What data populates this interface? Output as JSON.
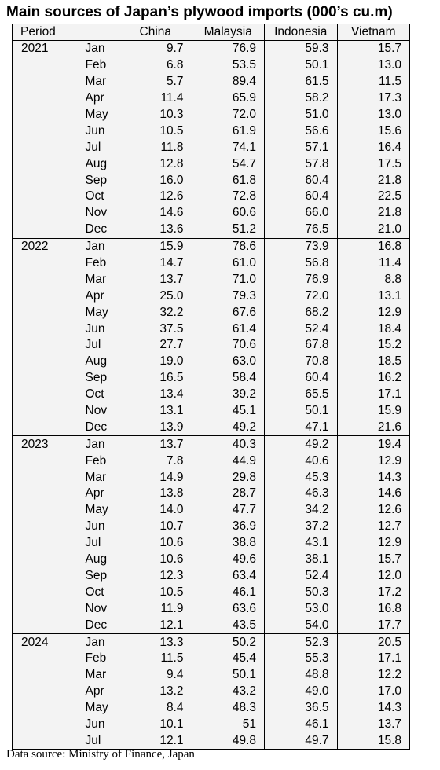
{
  "title": "Main sources of Japan’s plywood imports (000’s cu.m)",
  "source": "Data source: Ministry of Finance, Japan",
  "chart_data": {
    "type": "table",
    "title": "Main sources of Japan’s plywood imports (000’s cu.m)",
    "header": {
      "period": "Period",
      "series": [
        "China",
        "Malaysia",
        "Indonesia",
        "Vietnam"
      ]
    },
    "groups": [
      {
        "year": "2021",
        "rows": [
          {
            "month": "Jan",
            "values": [
              "9.7",
              "76.9",
              "59.3",
              "15.7"
            ]
          },
          {
            "month": "Feb",
            "values": [
              "6.8",
              "53.5",
              "50.1",
              "13.0"
            ]
          },
          {
            "month": "Mar",
            "values": [
              "5.7",
              "89.4",
              "61.5",
              "11.5"
            ]
          },
          {
            "month": "Apr",
            "values": [
              "11.4",
              "65.9",
              "58.2",
              "17.3"
            ]
          },
          {
            "month": "May",
            "values": [
              "10.3",
              "72.0",
              "51.0",
              "13.0"
            ]
          },
          {
            "month": "Jun",
            "values": [
              "10.5",
              "61.9",
              "56.6",
              "15.6"
            ]
          },
          {
            "month": "Jul",
            "values": [
              "11.8",
              "74.1",
              "57.1",
              "16.4"
            ]
          },
          {
            "month": "Aug",
            "values": [
              "12.8",
              "54.7",
              "57.8",
              "17.5"
            ]
          },
          {
            "month": "Sep",
            "values": [
              "16.0",
              "61.8",
              "60.4",
              "21.8"
            ]
          },
          {
            "month": "Oct",
            "values": [
              "12.6",
              "72.8",
              "60.4",
              "22.5"
            ]
          },
          {
            "month": "Nov",
            "values": [
              "14.6",
              "60.6",
              "66.0",
              "21.8"
            ]
          },
          {
            "month": "Dec",
            "values": [
              "13.6",
              "51.2",
              "76.5",
              "21.0"
            ]
          }
        ]
      },
      {
        "year": "2022",
        "rows": [
          {
            "month": "Jan",
            "values": [
              "15.9",
              "78.6",
              "73.9",
              "16.8"
            ]
          },
          {
            "month": "Feb",
            "values": [
              "14.7",
              "61.0",
              "56.8",
              "11.4"
            ]
          },
          {
            "month": "Mar",
            "values": [
              "13.7",
              "71.0",
              "76.9",
              "8.8"
            ]
          },
          {
            "month": "Apr",
            "values": [
              "25.0",
              "79.3",
              "72.0",
              "13.1"
            ]
          },
          {
            "month": "May",
            "values": [
              "32.2",
              "67.6",
              "68.2",
              "12.9"
            ]
          },
          {
            "month": "Jun",
            "values": [
              "37.5",
              "61.4",
              "52.4",
              "18.4"
            ]
          },
          {
            "month": "Jul",
            "values": [
              "27.7",
              "70.6",
              "67.8",
              "15.2"
            ]
          },
          {
            "month": "Aug",
            "values": [
              "19.0",
              "63.0",
              "70.8",
              "18.5"
            ]
          },
          {
            "month": "Sep",
            "values": [
              "16.5",
              "58.4",
              "60.4",
              "16.2"
            ]
          },
          {
            "month": "Oct",
            "values": [
              "13.4",
              "39.2",
              "65.5",
              "17.1"
            ]
          },
          {
            "month": "Nov",
            "values": [
              "13.1",
              "45.1",
              "50.1",
              "15.9"
            ]
          },
          {
            "month": "Dec",
            "values": [
              "13.9",
              "49.2",
              "47.1",
              "21.6"
            ]
          }
        ]
      },
      {
        "year": "2023",
        "rows": [
          {
            "month": "Jan",
            "values": [
              "13.7",
              "40.3",
              "49.2",
              "19.4"
            ]
          },
          {
            "month": "Feb",
            "values": [
              "7.8",
              "44.9",
              "40.6",
              "12.9"
            ]
          },
          {
            "month": "Mar",
            "values": [
              "14.9",
              "29.8",
              "45.3",
              "14.3"
            ]
          },
          {
            "month": "Apr",
            "values": [
              "13.8",
              "28.7",
              "46.3",
              "14.6"
            ]
          },
          {
            "month": "May",
            "values": [
              "14.0",
              "47.7",
              "34.2",
              "12.6"
            ]
          },
          {
            "month": "Jun",
            "values": [
              "10.7",
              "36.9",
              "37.2",
              "12.7"
            ]
          },
          {
            "month": "Jul",
            "values": [
              "10.6",
              "38.8",
              "43.1",
              "12.9"
            ]
          },
          {
            "month": "Aug",
            "values": [
              "10.6",
              "49.6",
              "38.1",
              "15.7"
            ]
          },
          {
            "month": "Sep",
            "values": [
              "12.3",
              "63.4",
              "52.4",
              "12.0"
            ]
          },
          {
            "month": "Oct",
            "values": [
              "10.5",
              "46.1",
              "50.3",
              "17.2"
            ]
          },
          {
            "month": "Nov",
            "values": [
              "11.9",
              "63.6",
              "53.0",
              "16.8"
            ]
          },
          {
            "month": "Dec",
            "values": [
              "12.1",
              "43.5",
              "54.0",
              "17.7"
            ]
          }
        ]
      },
      {
        "year": "2024",
        "rows": [
          {
            "month": "Jan",
            "values": [
              "13.3",
              "50.2",
              "52.3",
              "20.5"
            ]
          },
          {
            "month": "Feb",
            "values": [
              "11.5",
              "45.4",
              "55.3",
              "17.1"
            ]
          },
          {
            "month": "Mar",
            "values": [
              "9.4",
              "50.1",
              "48.8",
              "12.2"
            ]
          },
          {
            "month": "Apr",
            "values": [
              "13.2",
              "43.2",
              "49.0",
              "17.0"
            ]
          },
          {
            "month": "May",
            "values": [
              "8.4",
              "48.3",
              "36.5",
              "14.3"
            ]
          },
          {
            "month": "Jun",
            "values": [
              "10.1",
              "51",
              "46.1",
              "13.7"
            ]
          },
          {
            "month": "Jul",
            "values": [
              "12.1",
              "49.8",
              "49.7",
              "15.8"
            ]
          }
        ]
      }
    ]
  }
}
